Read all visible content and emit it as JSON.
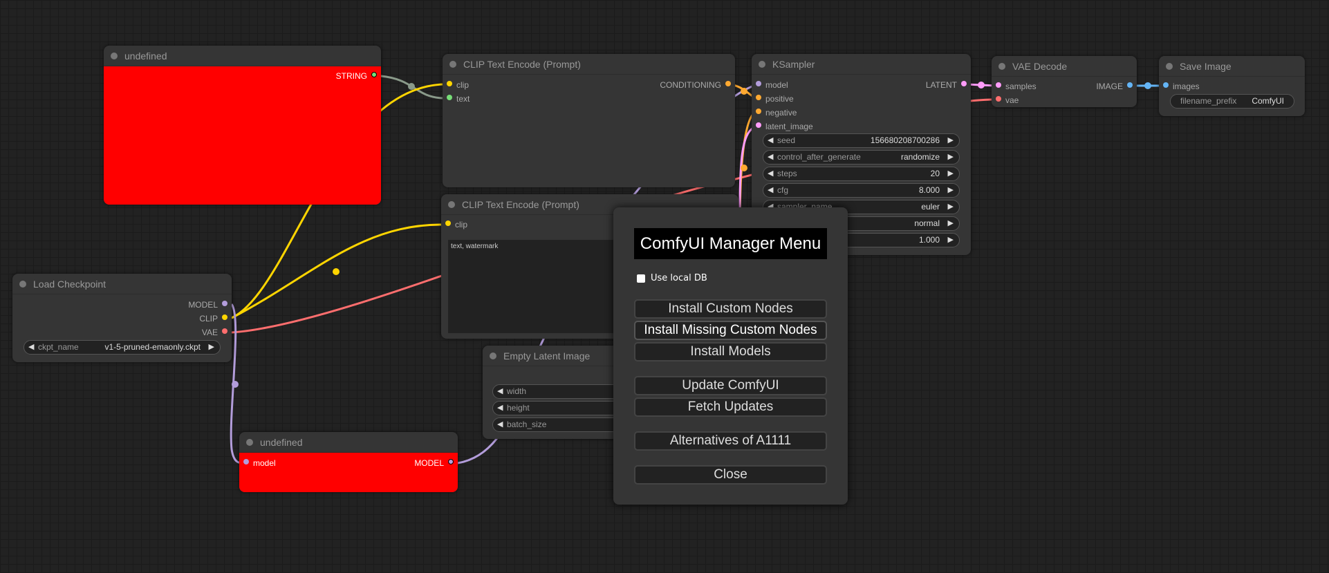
{
  "colors": {
    "model": "#b39ddb",
    "clip": "#ffd500",
    "vae": "#ff6e6e",
    "string": "#77dd77",
    "conditioning": "#ffa931",
    "latent": "#ff9cf9",
    "image": "#64b5f6",
    "error_node": "#ff0000"
  },
  "nodes": {
    "undefined_top": {
      "title": "undefined",
      "out": "STRING"
    },
    "clip1": {
      "title": "CLIP Text Encode (Prompt)",
      "in": [
        "clip",
        "text"
      ],
      "out": "CONDITIONING"
    },
    "clip2": {
      "title": "CLIP Text Encode (Prompt)",
      "in": [
        "clip"
      ],
      "text": "text, watermark"
    },
    "ksampler": {
      "title": "KSampler",
      "in": [
        "model",
        "positive",
        "negative",
        "latent_image"
      ],
      "out": "LATENT",
      "widgets": [
        {
          "label": "seed",
          "value": "156680208700286"
        },
        {
          "label": "control_after_generate",
          "value": "randomize"
        },
        {
          "label": "steps",
          "value": "20"
        },
        {
          "label": "cfg",
          "value": "8.000"
        },
        {
          "label": "sampler_name",
          "value": "euler"
        },
        {
          "label": "",
          "value": "normal"
        },
        {
          "label": "",
          "value": "1.000"
        }
      ]
    },
    "vae": {
      "title": "VAE Decode",
      "in": [
        "samples",
        "vae"
      ],
      "out": "IMAGE"
    },
    "save": {
      "title": "Save Image",
      "in": [
        "images"
      ],
      "widget": {
        "label": "filename_prefix",
        "value": "ComfyUI"
      }
    },
    "ckpt": {
      "title": "Load Checkpoint",
      "out": [
        "MODEL",
        "CLIP",
        "VAE"
      ],
      "widget": {
        "label": "ckpt_name",
        "value": "v1-5-pruned-emaonly.ckpt"
      }
    },
    "latent": {
      "title": "Empty Latent Image",
      "widgets": [
        "width",
        "height",
        "batch_size"
      ]
    },
    "undefined_bottom": {
      "title": "undefined",
      "in": "model",
      "out": "MODEL"
    }
  },
  "dialog": {
    "title": "ComfyUI Manager Menu",
    "checkbox": "Use local DB",
    "checkbox_checked": false,
    "buttons": [
      "Install Custom Nodes",
      "Install Missing Custom Nodes",
      "Install Models",
      "Update ComfyUI",
      "Fetch Updates",
      "Alternatives of A1111",
      "Close"
    ]
  }
}
